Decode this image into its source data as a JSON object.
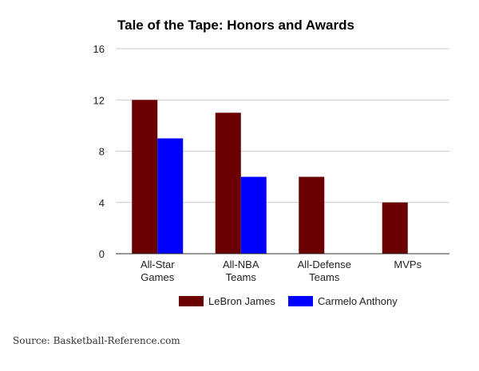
{
  "chart_data": {
    "type": "bar",
    "title": "Tale of the Tape: Honors and Awards",
    "categories": [
      [
        "All-Star",
        "Games"
      ],
      [
        "All-NBA",
        "Teams"
      ],
      [
        "All-Defense",
        "Teams"
      ],
      [
        "MVPs"
      ]
    ],
    "series": [
      {
        "name": "LeBron James",
        "color": "#6a0000",
        "values": [
          12,
          11,
          6,
          4
        ]
      },
      {
        "name": "Carmelo Anthony",
        "color": "#0000ff",
        "values": [
          9,
          6,
          0,
          0
        ]
      }
    ],
    "ylim": [
      0,
      16
    ],
    "yticks": [
      0,
      4,
      8,
      12,
      16
    ],
    "grid": true,
    "legend": "bottom",
    "xlabel": "",
    "ylabel": ""
  },
  "source": "Source: Basketball-Reference.com"
}
